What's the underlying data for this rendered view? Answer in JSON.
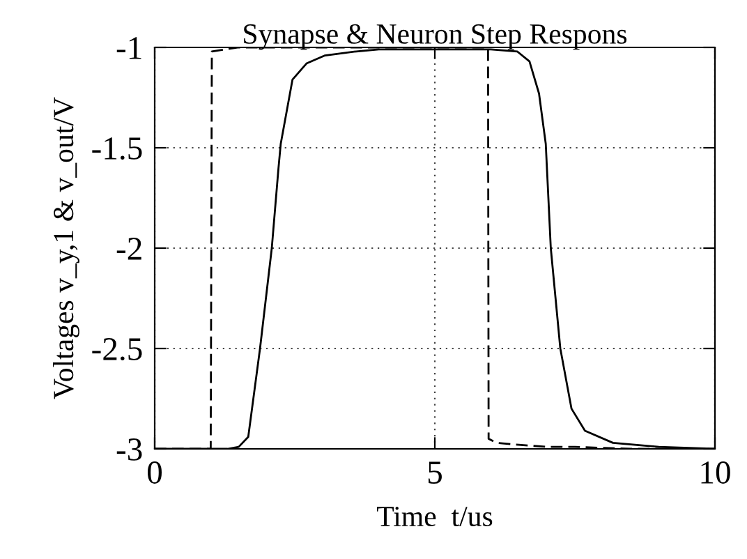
{
  "chart_data": {
    "type": "line",
    "title": "Synapse & Neuron Step Respons",
    "xlabel": "Time  t/us",
    "ylabel": "Voltages v_y,1 & v_out/V",
    "series": [
      {
        "color": "#000000",
        "line_style": "dashed",
        "x": [
          0,
          0.5,
          1.0,
          1.02,
          1.5,
          3,
          5,
          5.95,
          5.96,
          6.1,
          6.5,
          7,
          7.5,
          8.5,
          10
        ],
        "values": [
          -3,
          -3,
          -3,
          -1.02,
          -1.0,
          -1.0,
          -1.0,
          -1.0,
          -2.95,
          -2.97,
          -2.98,
          -2.99,
          -2.99,
          -3,
          -3
        ]
      },
      {
        "color": "#000000",
        "line_style": "solid",
        "x": [
          0,
          1,
          1.3,
          1.5,
          1.67,
          1.88,
          2.09,
          2.21,
          2.25,
          2.46,
          2.71,
          3.04,
          3.6,
          4,
          5,
          6,
          6.47,
          6.69,
          6.86,
          6.98,
          7.07,
          7.24,
          7.44,
          7.68,
          8.18,
          9,
          10
        ],
        "values": [
          -3,
          -3,
          -3,
          -2.99,
          -2.94,
          -2.5,
          -2.0,
          -1.6,
          -1.48,
          -1.16,
          -1.08,
          -1.04,
          -1.02,
          -1.01,
          -1.01,
          -1.01,
          -1.02,
          -1.07,
          -1.23,
          -1.48,
          -2.0,
          -2.5,
          -2.8,
          -2.91,
          -2.97,
          -2.99,
          -3
        ]
      }
    ],
    "xlim": [
      0,
      10
    ],
    "ylim": [
      -3,
      -1
    ],
    "xticks": [
      0,
      5,
      10
    ],
    "yticks": [
      -3,
      -2.5,
      -2,
      -1.5,
      -1
    ],
    "grid": true
  }
}
